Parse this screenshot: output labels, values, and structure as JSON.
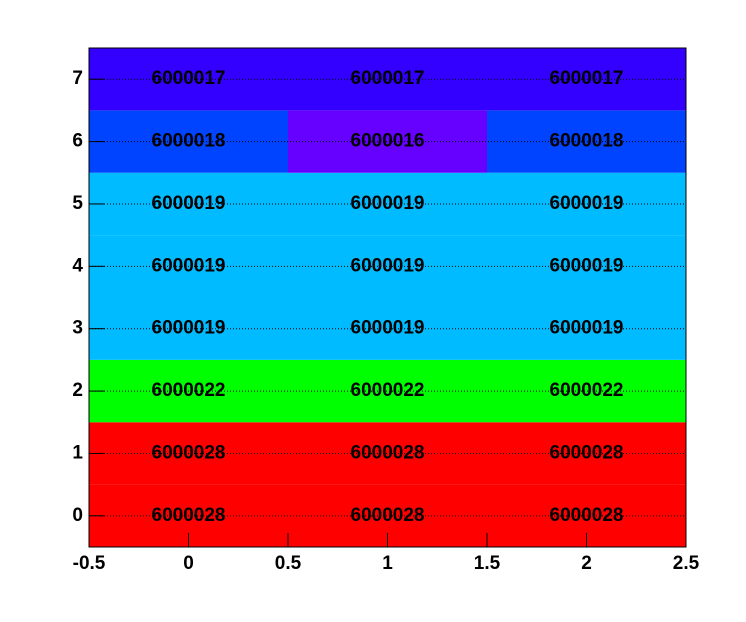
{
  "chart_data": {
    "type": "heatmap",
    "x": [
      0,
      1,
      2
    ],
    "y": [
      0,
      1,
      2,
      3,
      4,
      5,
      6,
      7
    ],
    "values": [
      [
        6000028,
        6000028,
        6000028
      ],
      [
        6000028,
        6000028,
        6000028
      ],
      [
        6000022,
        6000022,
        6000022
      ],
      [
        6000019,
        6000019,
        6000019
      ],
      [
        6000019,
        6000019,
        6000019
      ],
      [
        6000019,
        6000019,
        6000019
      ],
      [
        6000018,
        6000016,
        6000018
      ],
      [
        6000017,
        6000017,
        6000017
      ]
    ],
    "colors": [
      [
        "#ff0000",
        "#ff0000",
        "#ff0000"
      ],
      [
        "#ff0000",
        "#ff0000",
        "#ff0000"
      ],
      [
        "#00ff00",
        "#00ff00",
        "#00ff00"
      ],
      [
        "#00bbff",
        "#00bbff",
        "#00bbff"
      ],
      [
        "#00bbff",
        "#00bbff",
        "#00bbff"
      ],
      [
        "#00bbff",
        "#00bbff",
        "#00bbff"
      ],
      [
        "#0044ff",
        "#6600ff",
        "#0044ff"
      ],
      [
        "#3300ff",
        "#3300ff",
        "#3300ff"
      ]
    ],
    "xlim": [
      -0.5,
      2.5
    ],
    "ylim": [
      -0.5,
      7.5
    ],
    "xticks": [
      -0.5,
      0,
      0.5,
      1,
      1.5,
      2,
      2.5
    ],
    "yticks": [
      0,
      1,
      2,
      3,
      4,
      5,
      6,
      7
    ],
    "grid": true
  }
}
